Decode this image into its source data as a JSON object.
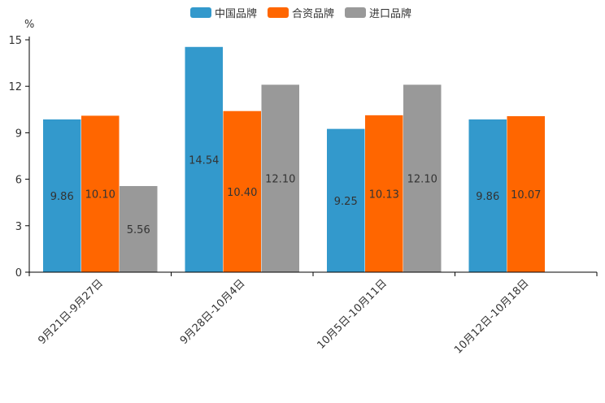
{
  "chart_data": {
    "type": "bar",
    "ylabel": "%",
    "ylim": [
      0,
      15
    ],
    "yticks": [
      0,
      3,
      6,
      9,
      12,
      15
    ],
    "categories": [
      "9月21日-9月27日",
      "9月28日-10月4日",
      "10月5日-10月11日",
      "10月12日-10月18日"
    ],
    "series": [
      {
        "name": "中国品牌",
        "color": "#3399CC",
        "values": [
          9.86,
          14.54,
          9.25,
          9.86
        ],
        "labels": [
          "9.86",
          "14.54",
          "9.25",
          "9.86"
        ]
      },
      {
        "name": "合资品牌",
        "color": "#FF6600",
        "values": [
          10.1,
          10.4,
          10.13,
          10.07
        ],
        "labels": [
          "10.10",
          "10.40",
          "10.13",
          "10.07"
        ]
      },
      {
        "name": "进口品牌",
        "color": "#999999",
        "values": [
          5.56,
          12.1,
          12.1,
          null
        ],
        "labels": [
          "5.56",
          "12.10",
          "12.10",
          null
        ]
      }
    ],
    "legend_position": "top-center",
    "grid": false
  }
}
